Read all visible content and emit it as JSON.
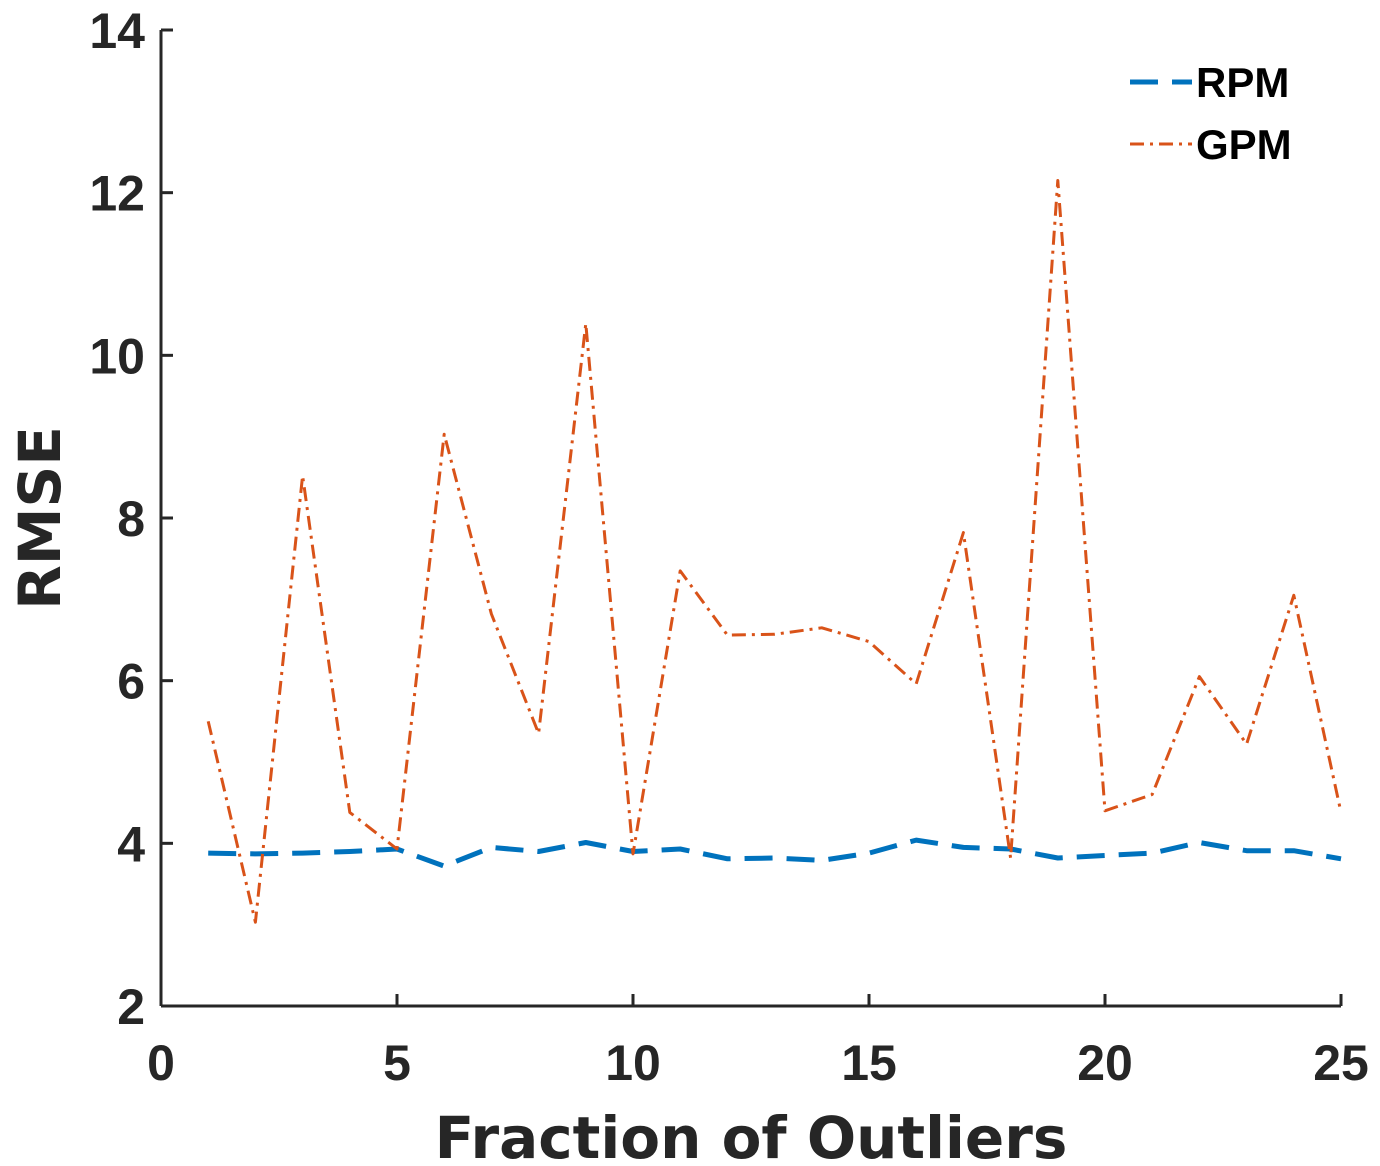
{
  "chart_data": {
    "type": "line",
    "xlabel": "Fraction of Outliers",
    "ylabel": "RMSE",
    "xlim": [
      0,
      25
    ],
    "ylim": [
      2,
      14
    ],
    "xticks": [
      0,
      5,
      10,
      15,
      20,
      25
    ],
    "yticks": [
      2,
      4,
      6,
      8,
      10,
      12,
      14
    ],
    "grid": false,
    "legend_position": "top-right",
    "x": [
      1,
      2,
      3,
      4,
      5,
      6,
      7,
      8,
      9,
      10,
      11,
      12,
      13,
      14,
      15,
      16,
      17,
      18,
      19,
      20,
      21,
      22,
      23,
      24,
      25
    ],
    "series": [
      {
        "name": "RPM",
        "color": "#0072BD",
        "line_style": "dashed",
        "values": [
          3.88,
          3.87,
          3.88,
          3.9,
          3.93,
          3.72,
          3.95,
          3.9,
          4.01,
          3.9,
          3.93,
          3.81,
          3.82,
          3.79,
          3.88,
          4.04,
          3.95,
          3.93,
          3.82,
          3.85,
          3.88,
          4.01,
          3.91,
          3.91,
          3.81
        ]
      },
      {
        "name": "GPM",
        "color": "#D95319",
        "line_style": "dash-dot",
        "values": [
          5.5,
          3.03,
          8.52,
          4.38,
          3.93,
          9.03,
          6.82,
          5.35,
          10.39,
          3.87,
          7.35,
          6.56,
          6.57,
          6.65,
          6.48,
          5.96,
          7.82,
          3.82,
          12.15,
          4.4,
          4.6,
          6.05,
          5.22,
          7.05,
          4.38
        ]
      }
    ]
  }
}
